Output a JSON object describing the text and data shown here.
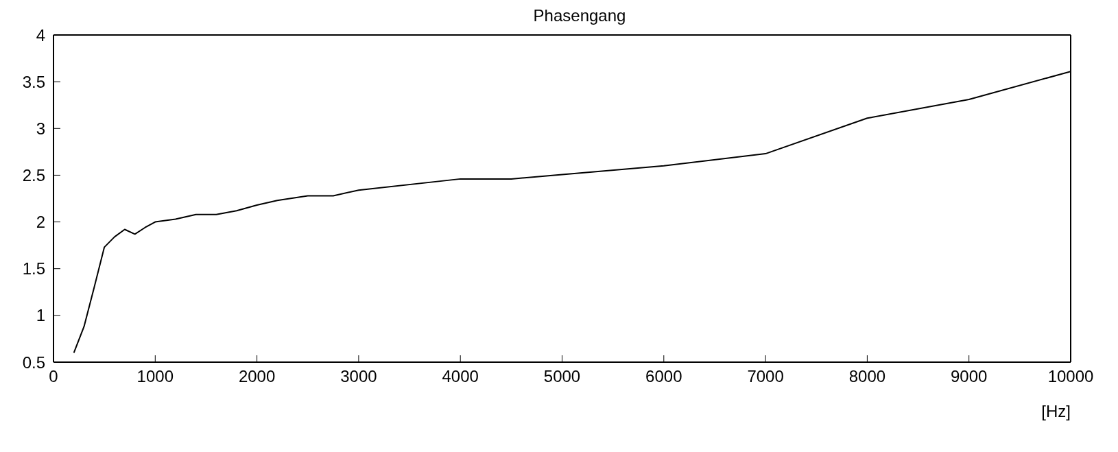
{
  "chart_data": {
    "type": "line",
    "title": "Phasengang",
    "xlabel": "[Hz]",
    "x": [
      200,
      300,
      400,
      500,
      600,
      700,
      800,
      900,
      1000,
      1200,
      1400,
      1600,
      1800,
      2000,
      2200,
      2500,
      2750,
      3000,
      4000,
      4500,
      6000,
      7000,
      8000,
      9000,
      10000
    ],
    "series": [
      {
        "color": "#000000",
        "values": [
          0.6,
          0.88,
          1.3,
          1.73,
          1.84,
          1.92,
          1.87,
          1.94,
          2.0,
          2.03,
          2.08,
          2.08,
          2.12,
          2.18,
          2.23,
          2.28,
          2.28,
          2.34,
          2.46,
          2.46,
          2.6,
          2.73,
          3.11,
          3.31,
          3.61
        ]
      }
    ],
    "xlim": [
      0,
      10000
    ],
    "xticks": [
      0,
      1000,
      2000,
      3000,
      4000,
      5000,
      6000,
      7000,
      8000,
      9000,
      10000
    ],
    "ylim": [
      0.5,
      4
    ],
    "yticks": [
      0.5,
      1,
      1.5,
      2,
      2.5,
      3,
      3.5,
      4
    ],
    "marker": "none",
    "line_style": "solid"
  }
}
